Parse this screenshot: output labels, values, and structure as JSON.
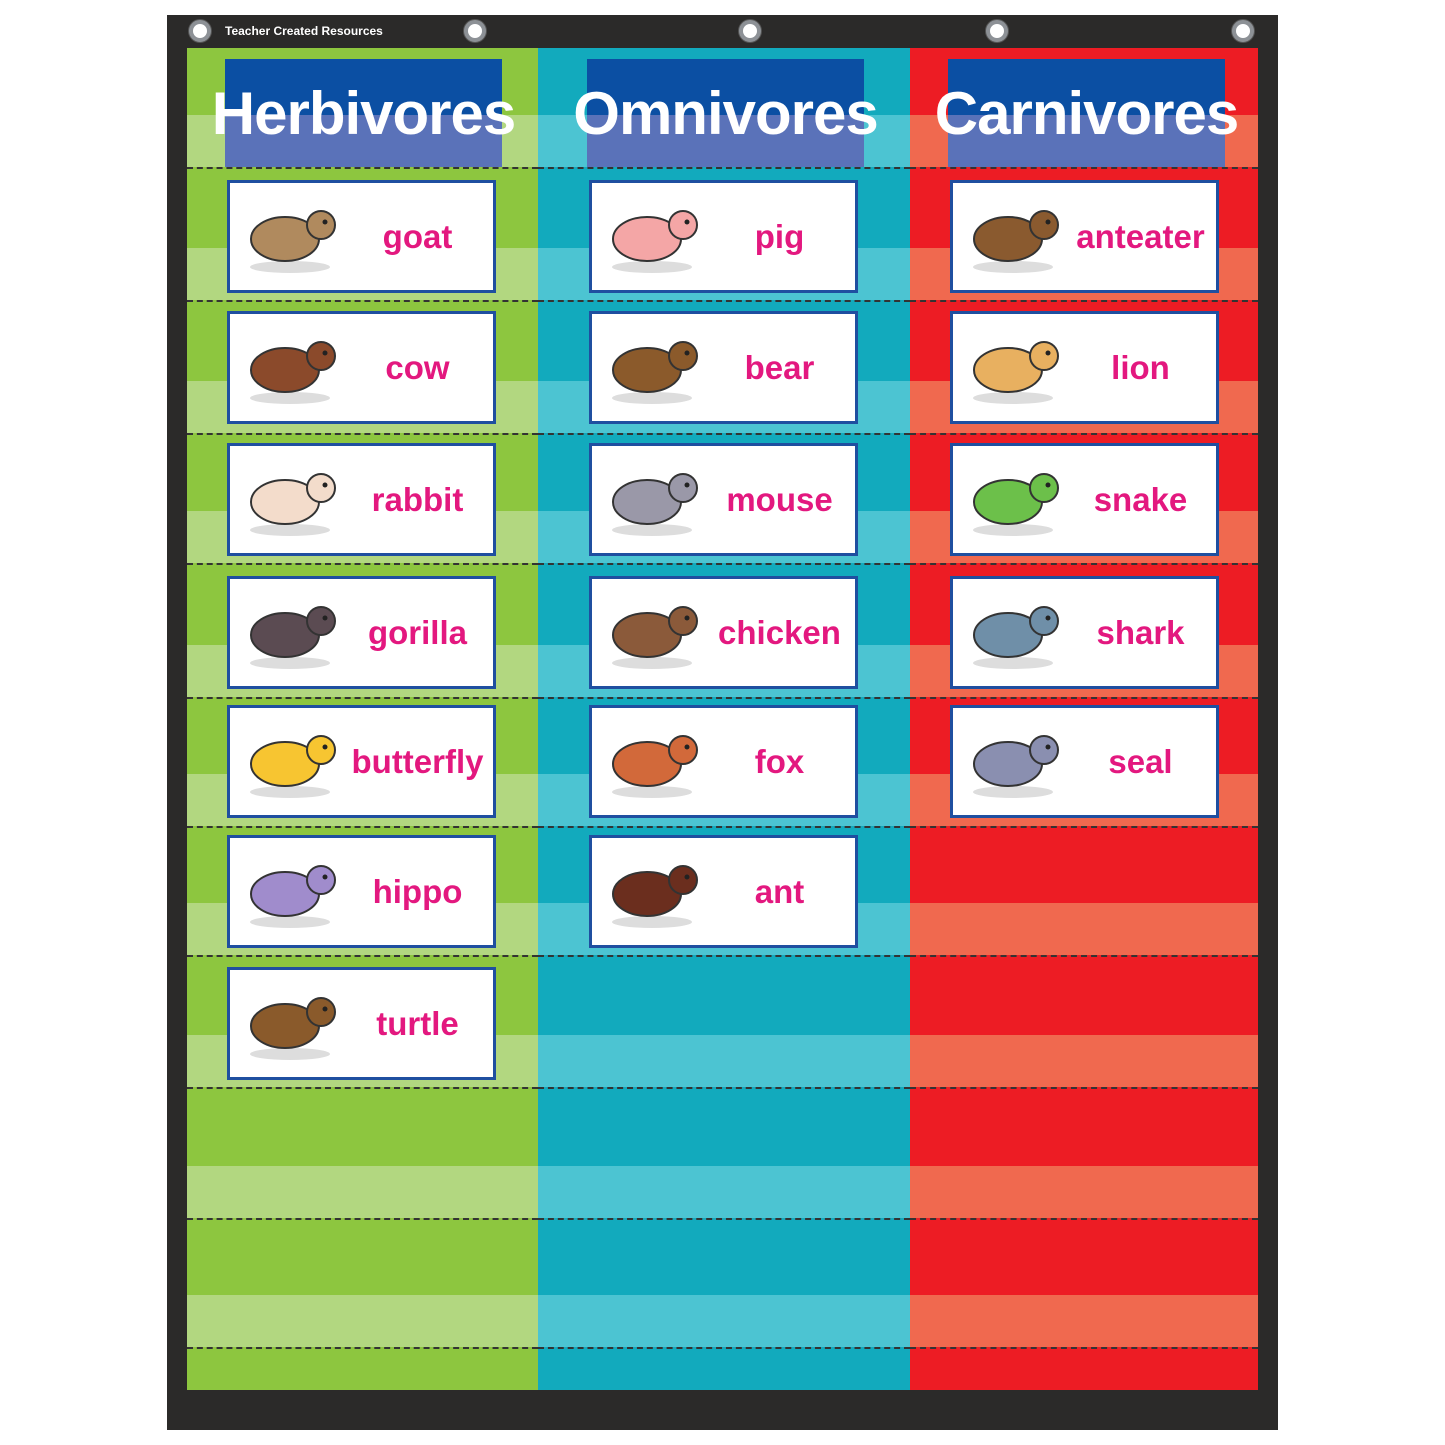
{
  "brand": "Teacher Created Resources",
  "colors": {
    "herbivores": "#8dc63f",
    "omnivores": "#12aabd",
    "carnivores": "#ed1c24",
    "header": "#0b4fa3",
    "word": "#e3187f"
  },
  "columns": [
    {
      "title": "Herbivores",
      "cards": [
        {
          "word": "goat",
          "icon": "goat-icon",
          "color": "#b08a5e"
        },
        {
          "word": "cow",
          "icon": "cow-icon",
          "color": "#8b4a2b"
        },
        {
          "word": "rabbit",
          "icon": "rabbit-icon",
          "color": "#f3dccb"
        },
        {
          "word": "gorilla",
          "icon": "gorilla-icon",
          "color": "#5b4b52"
        },
        {
          "word": "butterfly",
          "icon": "butterfly-icon",
          "color": "#f7c531"
        },
        {
          "word": "hippo",
          "icon": "hippo-icon",
          "color": "#a08ccc"
        },
        {
          "word": "turtle",
          "icon": "turtle-icon",
          "color": "#8a5a2b"
        }
      ]
    },
    {
      "title": "Omnivores",
      "cards": [
        {
          "word": "pig",
          "icon": "pig-icon",
          "color": "#f4a6a6"
        },
        {
          "word": "bear",
          "icon": "bear-icon",
          "color": "#8b5a2b"
        },
        {
          "word": "mouse",
          "icon": "mouse-icon",
          "color": "#9a98a8"
        },
        {
          "word": "chicken",
          "icon": "chicken-icon",
          "color": "#8b5a3a"
        },
        {
          "word": "fox",
          "icon": "fox-icon",
          "color": "#d2693a"
        },
        {
          "word": "ant",
          "icon": "ant-icon",
          "color": "#6b2e1e"
        }
      ]
    },
    {
      "title": "Carnivores",
      "cards": [
        {
          "word": "anteater",
          "icon": "anteater-icon",
          "color": "#8a5a2f"
        },
        {
          "word": "lion",
          "icon": "lion-icon",
          "color": "#e8b060"
        },
        {
          "word": "snake",
          "icon": "snake-icon",
          "color": "#6cc04a"
        },
        {
          "word": "shark",
          "icon": "shark-icon",
          "color": "#6f8fa8"
        },
        {
          "word": "seal",
          "icon": "seal-icon",
          "color": "#8a8fb0"
        }
      ]
    }
  ]
}
